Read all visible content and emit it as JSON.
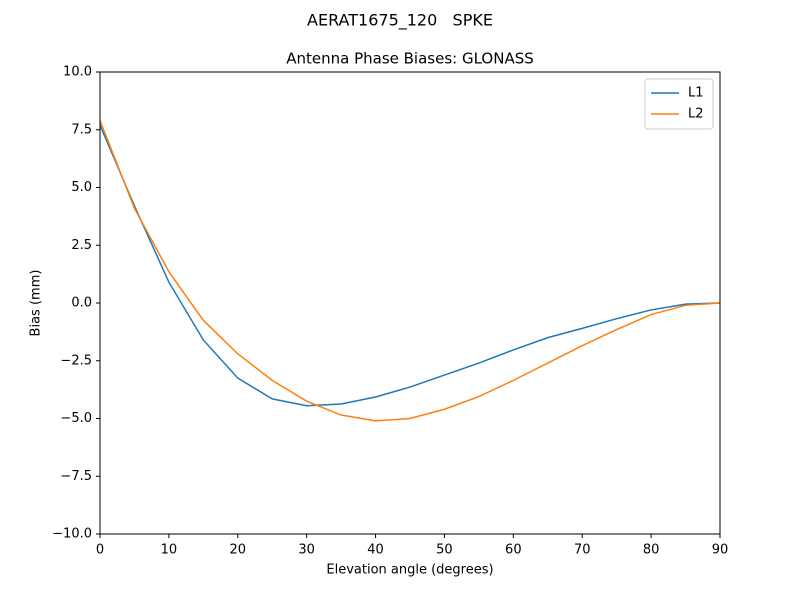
{
  "chart_data": {
    "type": "line",
    "suptitle": "AERAT1675_120   SPKE",
    "title": "Antenna Phase Biases: GLONASS",
    "xlabel": "Elevation angle (degrees)",
    "ylabel": "Bias (mm)",
    "x": [
      0,
      5,
      10,
      15,
      20,
      25,
      30,
      35,
      40,
      45,
      50,
      55,
      60,
      65,
      70,
      75,
      80,
      85,
      90
    ],
    "series": [
      {
        "name": "L1",
        "color": "#1f77b4",
        "values": [
          7.7,
          4.2,
          0.9,
          -1.6,
          -3.25,
          -4.15,
          -4.45,
          -4.37,
          -4.07,
          -3.64,
          -3.12,
          -2.6,
          -2.03,
          -1.5,
          -1.1,
          -0.68,
          -0.3,
          -0.05,
          0
        ]
      },
      {
        "name": "L2",
        "color": "#ff7f0e",
        "values": [
          7.9,
          4.1,
          1.35,
          -0.75,
          -2.2,
          -3.35,
          -4.25,
          -4.85,
          -5.1,
          -5.0,
          -4.6,
          -4.05,
          -3.35,
          -2.6,
          -1.85,
          -1.15,
          -0.5,
          -0.1,
          0
        ]
      }
    ],
    "xlim": [
      0,
      90
    ],
    "ylim": [
      -10,
      10
    ],
    "xticks": [
      0,
      10,
      20,
      30,
      40,
      50,
      60,
      70,
      80,
      90
    ],
    "yticks": [
      {
        "value": -10,
        "label": "−10.0"
      },
      {
        "value": -7.5,
        "label": "−7.5"
      },
      {
        "value": -5,
        "label": "−5.0"
      },
      {
        "value": -2.5,
        "label": "−2.5"
      },
      {
        "value": 0,
        "label": "0.0"
      },
      {
        "value": 2.5,
        "label": "2.5"
      },
      {
        "value": 5,
        "label": "5.0"
      },
      {
        "value": 7.5,
        "label": "7.5"
      },
      {
        "value": 10,
        "label": "10.0"
      }
    ],
    "legend": "upper right",
    "grid": false
  }
}
